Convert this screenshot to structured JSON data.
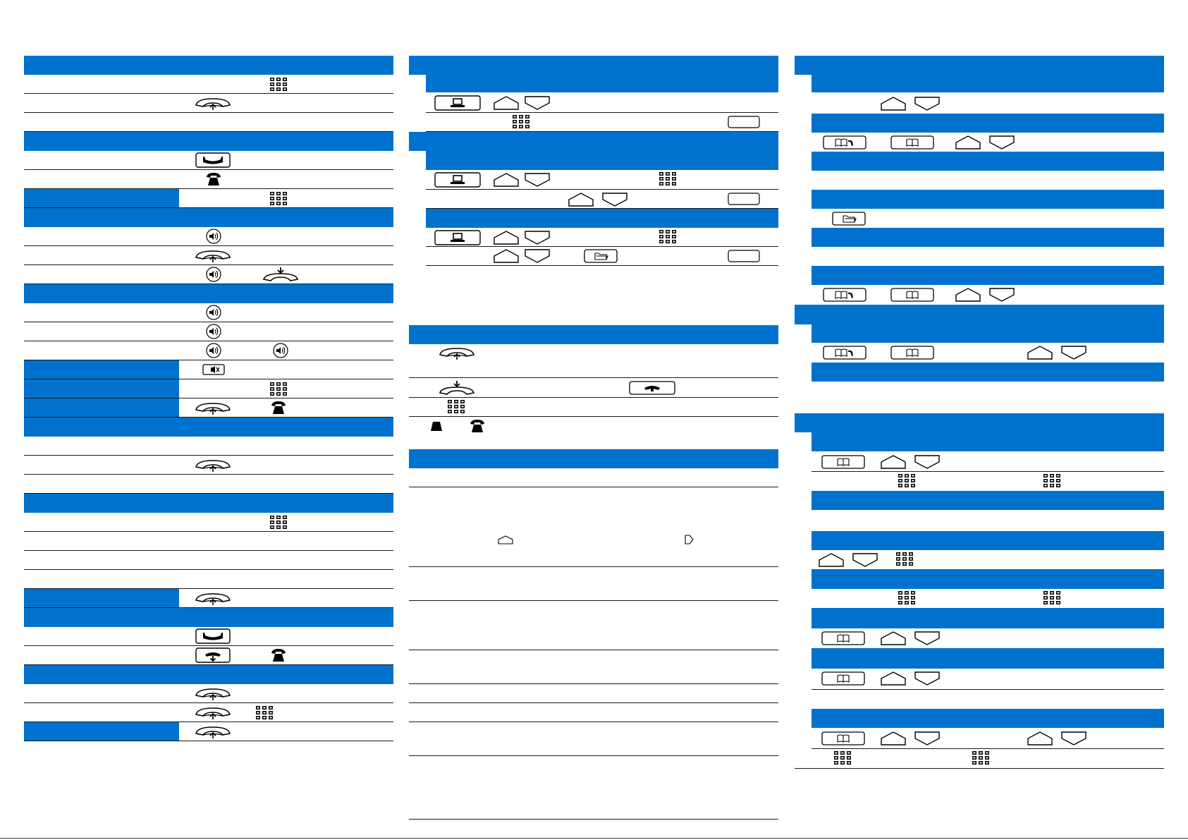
{
  "document": {
    "kind": "quick-reference-card",
    "text_content": []
  },
  "colors": {
    "section_header": "#0072ce",
    "rule": "#1a1a1a",
    "icon_stroke": "#000000",
    "background": "#ffffff"
  },
  "icon_types": {
    "keypad": "keypad-icon",
    "handset_lift": "lift-handset-icon",
    "handset_down": "replace-handset-icon",
    "release_key": "release-key-icon",
    "phone_solid": "phone-icon",
    "speaker_round": "speaker-icon",
    "mute_key": "mute-key-icon",
    "scroll_up": "scroll-up-key-icon",
    "scroll_down": "scroll-down-key-icon",
    "menu_key": "menu-key-icon",
    "soft_key": "soft-key-icon",
    "folder_key": "folder-key-icon",
    "phonebook_call": "phonebook-call-key-icon",
    "phonebook": "phonebook-key-icon",
    "hold_key": "hold-key-icon",
    "arrow_small": "small-arrow-icon"
  }
}
